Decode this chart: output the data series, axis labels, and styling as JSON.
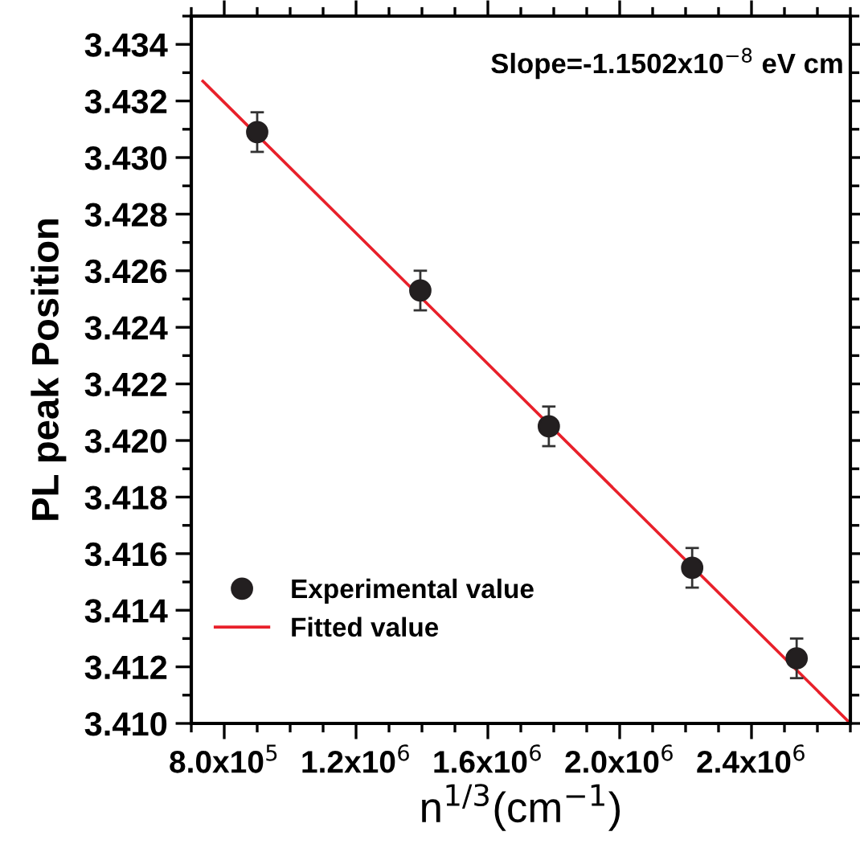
{
  "chart_data": {
    "type": "scatter",
    "xlabel": "n$^{1/3}$(cm$^{−1}$)",
    "ylabel": "PL peak Position",
    "annotations": [
      "Slope=-1.1502x10$^{−8}$ eV cm"
    ],
    "series": [
      {
        "name": "Experimental value",
        "color": "#231f20",
        "marker": "circle",
        "x": [
          900000,
          1395000,
          1785000,
          2220000,
          2537000
        ],
        "values": [
          3.4309,
          3.4253,
          3.4205,
          3.4155,
          3.4123
        ],
        "errors": [
          0.0007,
          0.0007,
          0.0007,
          0.0007,
          0.0007
        ]
      },
      {
        "name": "Fitted value",
        "type": "line",
        "color": "#e8202a",
        "line_style": "solid",
        "x": [
          735000,
          2700000
        ],
        "values": [
          3.4327,
          3.41
        ]
      }
    ],
    "xlim": [
      700000,
      2700000
    ],
    "ylim": [
      3.41,
      3.435
    ],
    "xticks": [
      {
        "value": 800000,
        "label": "8.0x10$^{5}$"
      },
      {
        "value": 1200000,
        "label": "1.2x10$^{6}$"
      },
      {
        "value": 1600000,
        "label": "1.6x10$^{6}$"
      },
      {
        "value": 2000000,
        "label": "2.0x10$^{6}$"
      },
      {
        "value": 2400000,
        "label": "2.4x10$^{6}$"
      }
    ],
    "yticks": [
      {
        "value": 3.41,
        "label": "3.410"
      },
      {
        "value": 3.412,
        "label": "3.412"
      },
      {
        "value": 3.414,
        "label": "3.414"
      },
      {
        "value": 3.416,
        "label": "3.416"
      },
      {
        "value": 3.418,
        "label": "3.418"
      },
      {
        "value": 3.42,
        "label": "3.420"
      },
      {
        "value": 3.422,
        "label": "3.422"
      },
      {
        "value": 3.424,
        "label": "3.424"
      },
      {
        "value": 3.426,
        "label": "3.426"
      },
      {
        "value": 3.428,
        "label": "3.428"
      },
      {
        "value": 3.43,
        "label": "3.430"
      },
      {
        "value": 3.432,
        "label": "3.432"
      },
      {
        "value": 3.434,
        "label": "3.434"
      }
    ],
    "grid": false,
    "legend": "bottom left"
  }
}
